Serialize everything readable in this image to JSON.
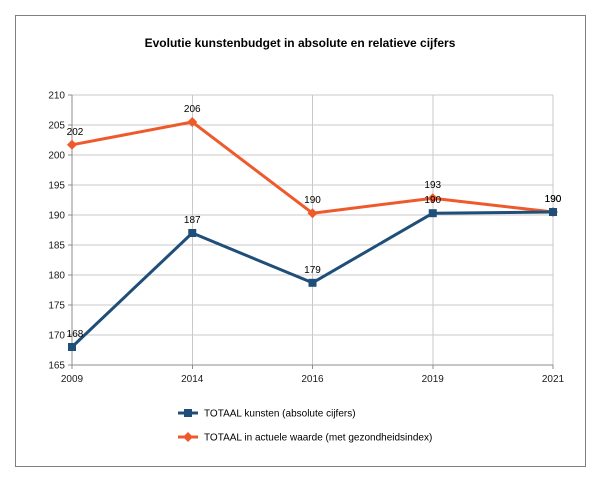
{
  "chart_data": {
    "type": "line",
    "title": "Evolutie kunstenbudget in absolute en relatieve cijfers",
    "categories": [
      "2009",
      "2014",
      "2016",
      "2019",
      "2021"
    ],
    "ylim": [
      165,
      210
    ],
    "yticks": [
      165,
      170,
      175,
      180,
      185,
      190,
      195,
      200,
      205,
      210
    ],
    "grid": true,
    "legend": "bottom",
    "series": [
      {
        "name": "TOTAAL kunsten (absolute cijfers)",
        "values": [
          168.0,
          187.0,
          178.7,
          190.3,
          190.5
        ],
        "labels": [
          "168",
          "187",
          "179",
          "190",
          "190"
        ],
        "color": "#1F4E79",
        "marker": "square"
      },
      {
        "name": "TOTAAL in actuele waarde (met gezondheidsindex)",
        "values": [
          201.7,
          205.5,
          190.3,
          192.8,
          190.5
        ],
        "labels": [
          "202",
          "206",
          "190",
          "193",
          "190"
        ],
        "color": "#EE5A2B",
        "marker": "diamond"
      }
    ]
  }
}
